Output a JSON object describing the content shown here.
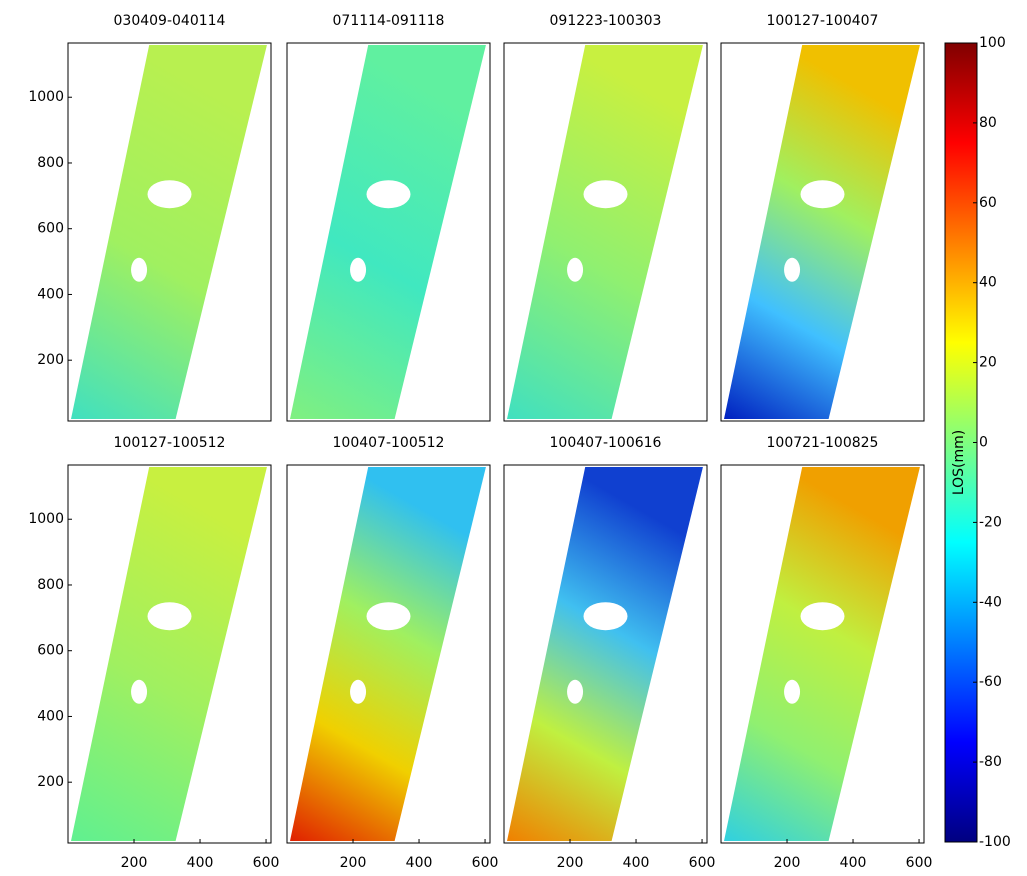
{
  "chart_data": [
    {
      "type": "heatmap",
      "title": "030409-040114",
      "xlim": [
        0,
        615
      ],
      "ylim": [
        15,
        1165
      ],
      "yticks": [
        200,
        400,
        600,
        800,
        1000
      ]
    },
    {
      "type": "heatmap",
      "title": "071114-091118",
      "xlim": [
        0,
        615
      ],
      "ylim": [
        15,
        1165
      ]
    },
    {
      "type": "heatmap",
      "title": "091223-100303",
      "xlim": [
        0,
        615
      ],
      "ylim": [
        15,
        1165
      ]
    },
    {
      "type": "heatmap",
      "title": "100127-100407",
      "xlim": [
        0,
        615
      ],
      "ylim": [
        15,
        1165
      ]
    },
    {
      "type": "heatmap",
      "title": "100127-100512",
      "xlim": [
        0,
        615
      ],
      "ylim": [
        15,
        1165
      ],
      "xticks": [
        200,
        400,
        600
      ],
      "yticks": [
        200,
        400,
        600,
        800,
        1000
      ]
    },
    {
      "type": "heatmap",
      "title": "100407-100512",
      "xlim": [
        0,
        615
      ],
      "ylim": [
        15,
        1165
      ],
      "xticks": [
        200,
        400,
        600
      ]
    },
    {
      "type": "heatmap",
      "title": "100407-100616",
      "xlim": [
        0,
        615
      ],
      "ylim": [
        15,
        1165
      ],
      "xticks": [
        200,
        400,
        600
      ]
    },
    {
      "type": "heatmap",
      "title": "100721-100825",
      "xlim": [
        0,
        615
      ],
      "ylim": [
        15,
        1165
      ],
      "xticks": [
        200,
        400,
        600
      ]
    },
    {
      "type": "colorbar",
      "label": "LOS(mm)",
      "colormap": "jet",
      "ylim": [
        -100,
        100
      ],
      "yticks": [
        -100,
        -80,
        -60,
        -40,
        -20,
        0,
        20,
        40,
        60,
        80,
        100
      ]
    }
  ]
}
